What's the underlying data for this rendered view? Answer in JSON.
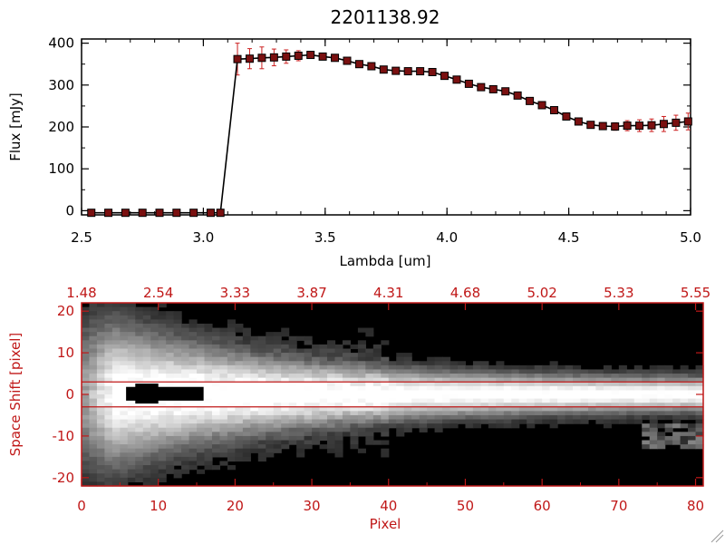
{
  "colors": {
    "axis_black": "#000000",
    "axis_red": "#c01818",
    "marker_fill": "#7a1010",
    "errorbar": "#cc2020",
    "line": "#000000",
    "image_dark": "#000000",
    "image_bright": "#ffffff"
  },
  "chart_data": [
    {
      "type": "line",
      "title": "2201138.92",
      "xlabel": "Lambda [um]",
      "ylabel": "Flux [mJy]",
      "xlim": [
        2.5,
        5.0
      ],
      "ylim": [
        -10,
        410
      ],
      "x_ticks": [
        2.5,
        3.0,
        3.5,
        4.0,
        4.5,
        5.0
      ],
      "x_tick_labels": [
        "2.5",
        "3.0",
        "3.5",
        "4.0",
        "4.5",
        "5.0"
      ],
      "y_ticks": [
        0,
        100,
        200,
        300,
        400
      ],
      "y_tick_labels": [
        "0",
        "100",
        "200",
        "300",
        "400"
      ],
      "grid": false,
      "series": [
        {
          "x": [
            2.54,
            2.61,
            2.68,
            2.75,
            2.82,
            2.89,
            2.96,
            3.03,
            3.07,
            3.14,
            3.19,
            3.24,
            3.29,
            3.34,
            3.39,
            3.44,
            3.49,
            3.54,
            3.59,
            3.64,
            3.69,
            3.74,
            3.79,
            3.84,
            3.89,
            3.94,
            3.99,
            4.04,
            4.09,
            4.14,
            4.19,
            4.24,
            4.29,
            4.34,
            4.39,
            4.44,
            4.49,
            4.54,
            4.59,
            4.64,
            4.69,
            4.74,
            4.79,
            4.84,
            4.89,
            4.94,
            4.99
          ],
          "y": [
            -5,
            -5,
            -5,
            -5,
            -5,
            -5,
            -5,
            -5,
            -5,
            362,
            363,
            365,
            366,
            368,
            370,
            372,
            368,
            365,
            358,
            350,
            345,
            337,
            334,
            333,
            333,
            331,
            322,
            313,
            303,
            295,
            290,
            285,
            275,
            262,
            252,
            240,
            225,
            213,
            205,
            202,
            201,
            203,
            203,
            204,
            207,
            210,
            213
          ],
          "yerr": [
            0,
            0,
            0,
            0,
            0,
            0,
            0,
            0,
            0,
            38,
            24,
            26,
            20,
            16,
            12,
            8,
            6,
            5,
            5,
            5,
            5,
            5,
            5,
            5,
            5,
            5,
            5,
            5,
            5,
            5,
            5,
            5,
            5,
            5,
            5,
            5,
            5,
            5,
            6,
            7,
            9,
            12,
            14,
            15,
            18,
            18,
            20
          ]
        }
      ]
    },
    {
      "type": "heatmap",
      "xlabel": "Pixel",
      "ylabel": "Space Shift [pixel]",
      "xlim": [
        0,
        81
      ],
      "ylim": [
        -22,
        22
      ],
      "x_ticks": [
        0,
        10,
        20,
        30,
        40,
        50,
        60,
        70,
        80
      ],
      "x_tick_labels": [
        "0",
        "10",
        "20",
        "30",
        "40",
        "50",
        "60",
        "70",
        "80"
      ],
      "y_ticks": [
        20,
        10,
        0,
        -10,
        -20
      ],
      "y_tick_labels": [
        "20",
        "10",
        "0",
        "-10",
        "-20"
      ],
      "top_ticks": [
        0,
        10,
        20,
        30,
        40,
        50,
        60,
        70,
        80
      ],
      "top_tick_labels": [
        "1.48",
        "2.54",
        "3.33",
        "3.87",
        "4.31",
        "4.68",
        "5.02",
        "5.33",
        "5.55"
      ],
      "extraction_window": [
        -3,
        3
      ]
    }
  ]
}
